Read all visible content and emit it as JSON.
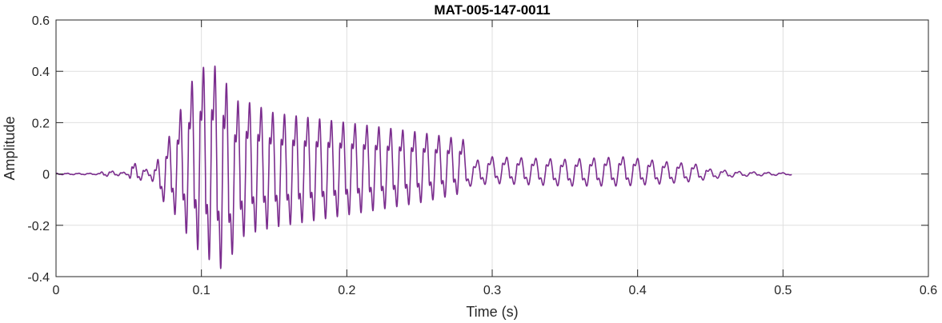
{
  "chart_data": {
    "type": "line",
    "title": "MAT-005-147-0011",
    "xlabel": "Time (s)",
    "ylabel": "Amplitude",
    "xlim": [
      0,
      0.6
    ],
    "ylim": [
      -0.4,
      0.6
    ],
    "xticks": [
      0,
      0.1,
      0.2,
      0.3,
      0.4,
      0.5,
      0.6
    ],
    "yticks": [
      -0.4,
      -0.2,
      0,
      0.2,
      0.4,
      0.6
    ],
    "xtick_labels": [
      "0",
      "0.1",
      "0.2",
      "0.3",
      "0.4",
      "0.5",
      "0.6"
    ],
    "ytick_labels": [
      "-0.4",
      "-0.2",
      "0",
      "0.2",
      "0.4",
      "0.6"
    ],
    "grid": true,
    "series": [
      {
        "color": "#7b2d8e",
        "description_points": {
          "t": [
            0,
            0.03,
            0.033,
            0.05,
            0.052,
            0.065,
            0.07,
            0.08,
            0.095,
            0.104,
            0.11,
            0.115,
            0.12,
            0.13,
            0.15,
            0.2,
            0.25,
            0.28,
            0.285,
            0.3,
            0.35,
            0.39,
            0.42,
            0.44,
            0.45,
            0.47,
            0.5,
            0.506
          ],
          "envelope_max": [
            0.003,
            0.003,
            0.015,
            0.005,
            0.05,
            0.01,
            0.06,
            0.18,
            0.4,
            0.45,
            0.44,
            0.43,
            0.3,
            0.3,
            0.25,
            0.21,
            0.17,
            0.14,
            0.05,
            0.07,
            0.06,
            0.07,
            0.05,
            0.04,
            0.02,
            0.01,
            0.005,
            0.004
          ],
          "envelope_min": [
            -0.003,
            -0.003,
            -0.01,
            -0.005,
            -0.04,
            -0.01,
            -0.09,
            -0.15,
            -0.3,
            -0.35,
            -0.37,
            -0.4,
            -0.34,
            -0.25,
            -0.22,
            -0.17,
            -0.12,
            -0.08,
            -0.05,
            -0.04,
            -0.05,
            -0.05,
            -0.04,
            -0.03,
            -0.02,
            -0.01,
            -0.005,
            -0.004
          ]
        }
      }
    ]
  }
}
